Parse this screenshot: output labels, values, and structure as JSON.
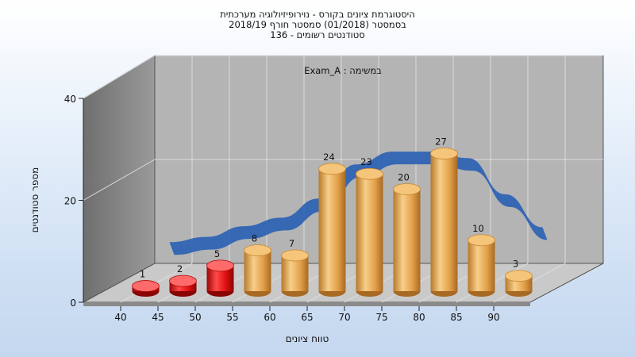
{
  "chart_data": {
    "type": "bar",
    "title_lines": [
      "היסטוגרמת ציונים בקורס - נוירופיזיולוגיה מערכתית",
      "בסמסטר  (01/2018)  סמסטר חורף 2018/19",
      "סטודנטים רשומים - 136"
    ],
    "annotation": "Exam_A : במשימה",
    "xlabel": "טווח ציונים",
    "ylabel": "מספר סטודנטים",
    "ylim": [
      0,
      40
    ],
    "yticks": [
      "0",
      "20",
      "40"
    ],
    "categories": [
      "40",
      "45",
      "50",
      "55",
      "60",
      "65",
      "70",
      "75",
      "80",
      "85",
      "90"
    ],
    "values": [
      1,
      2,
      5,
      8,
      7,
      24,
      23,
      20,
      27,
      10,
      3
    ],
    "colors": {
      "failing": "#e01010",
      "passing": "#e8a84a",
      "trend": "#2f64b4",
      "wall_back": "#b3b3b3",
      "wall_side": "#8a8a8a"
    }
  }
}
